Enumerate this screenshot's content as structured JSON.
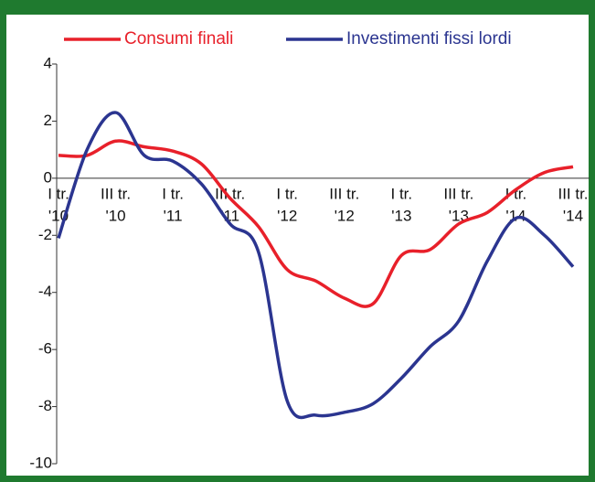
{
  "chart_data": {
    "type": "line",
    "categories": [
      [
        "I tr.",
        "'10"
      ],
      null,
      [
        "III tr.",
        "'10"
      ],
      null,
      [
        "I tr.",
        "'11"
      ],
      null,
      [
        "III tr.",
        "'11"
      ],
      null,
      [
        "I tr.",
        "'12"
      ],
      null,
      [
        "III tr.",
        "'12"
      ],
      null,
      [
        "I tr.",
        "'13"
      ],
      null,
      [
        "III tr.",
        "'13"
      ],
      null,
      [
        "I tr.",
        "'14"
      ],
      null,
      [
        "III tr.",
        "'14"
      ]
    ],
    "series": [
      {
        "name": "Consumi finali",
        "color": "#e8202a",
        "values": [
          0.8,
          0.8,
          1.3,
          1.1,
          0.95,
          0.5,
          -0.7,
          -1.7,
          -3.2,
          -3.6,
          -4.2,
          -4.4,
          -2.7,
          -2.5,
          -1.6,
          -1.2,
          -0.4,
          0.2,
          0.4
        ]
      },
      {
        "name": "Investimenti fissi lordi",
        "color": "#2b3590",
        "values": [
          -2.1,
          1.0,
          2.3,
          0.8,
          0.6,
          -0.2,
          -1.6,
          -2.6,
          -7.8,
          -8.3,
          -8.2,
          -7.9,
          -7.0,
          -5.9,
          -5.0,
          -2.9,
          -1.4,
          -2.0,
          -3.1
        ]
      }
    ],
    "ylim": [
      -10,
      4
    ],
    "yticks": [
      -10,
      -8,
      -6,
      -4,
      -2,
      0,
      2,
      4
    ],
    "legend": "top"
  }
}
